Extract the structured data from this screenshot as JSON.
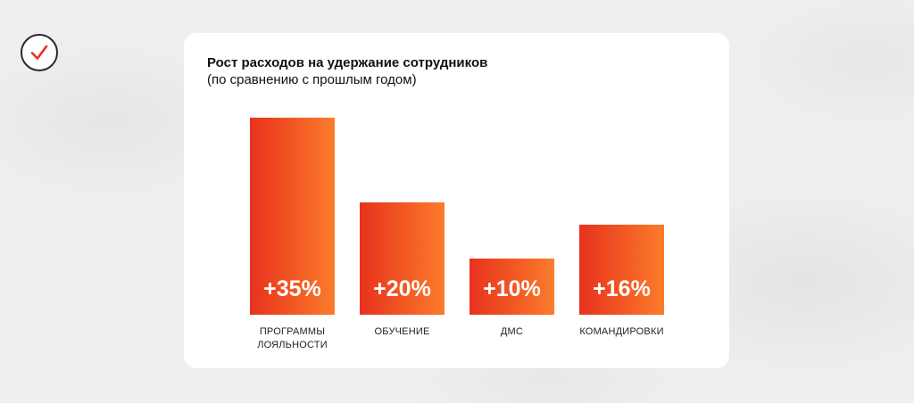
{
  "header": {
    "logo_icon": "checkmark-circle-icon"
  },
  "chart_data": {
    "type": "bar",
    "title": "Рост расходов на удержание сотрудников",
    "subtitle": "(по сравнению с прошлым годом)",
    "categories": [
      [
        "ПРОГРАММЫ",
        "ЛОЯЛЬНОСТИ"
      ],
      [
        "ОБУЧЕНИЕ"
      ],
      [
        "ДМС"
      ],
      [
        "КОМАНДИРОВКИ"
      ]
    ],
    "values": [
      35,
      20,
      10,
      16
    ],
    "value_labels": [
      "+35%",
      "+20%",
      "+10%",
      "+16%"
    ],
    "ylim": [
      0,
      35
    ],
    "grid": false,
    "legend": "none",
    "colors": {
      "bar_start": "#e8321f",
      "bar_end": "#fb7c2c",
      "label": "#ffffff"
    }
  }
}
